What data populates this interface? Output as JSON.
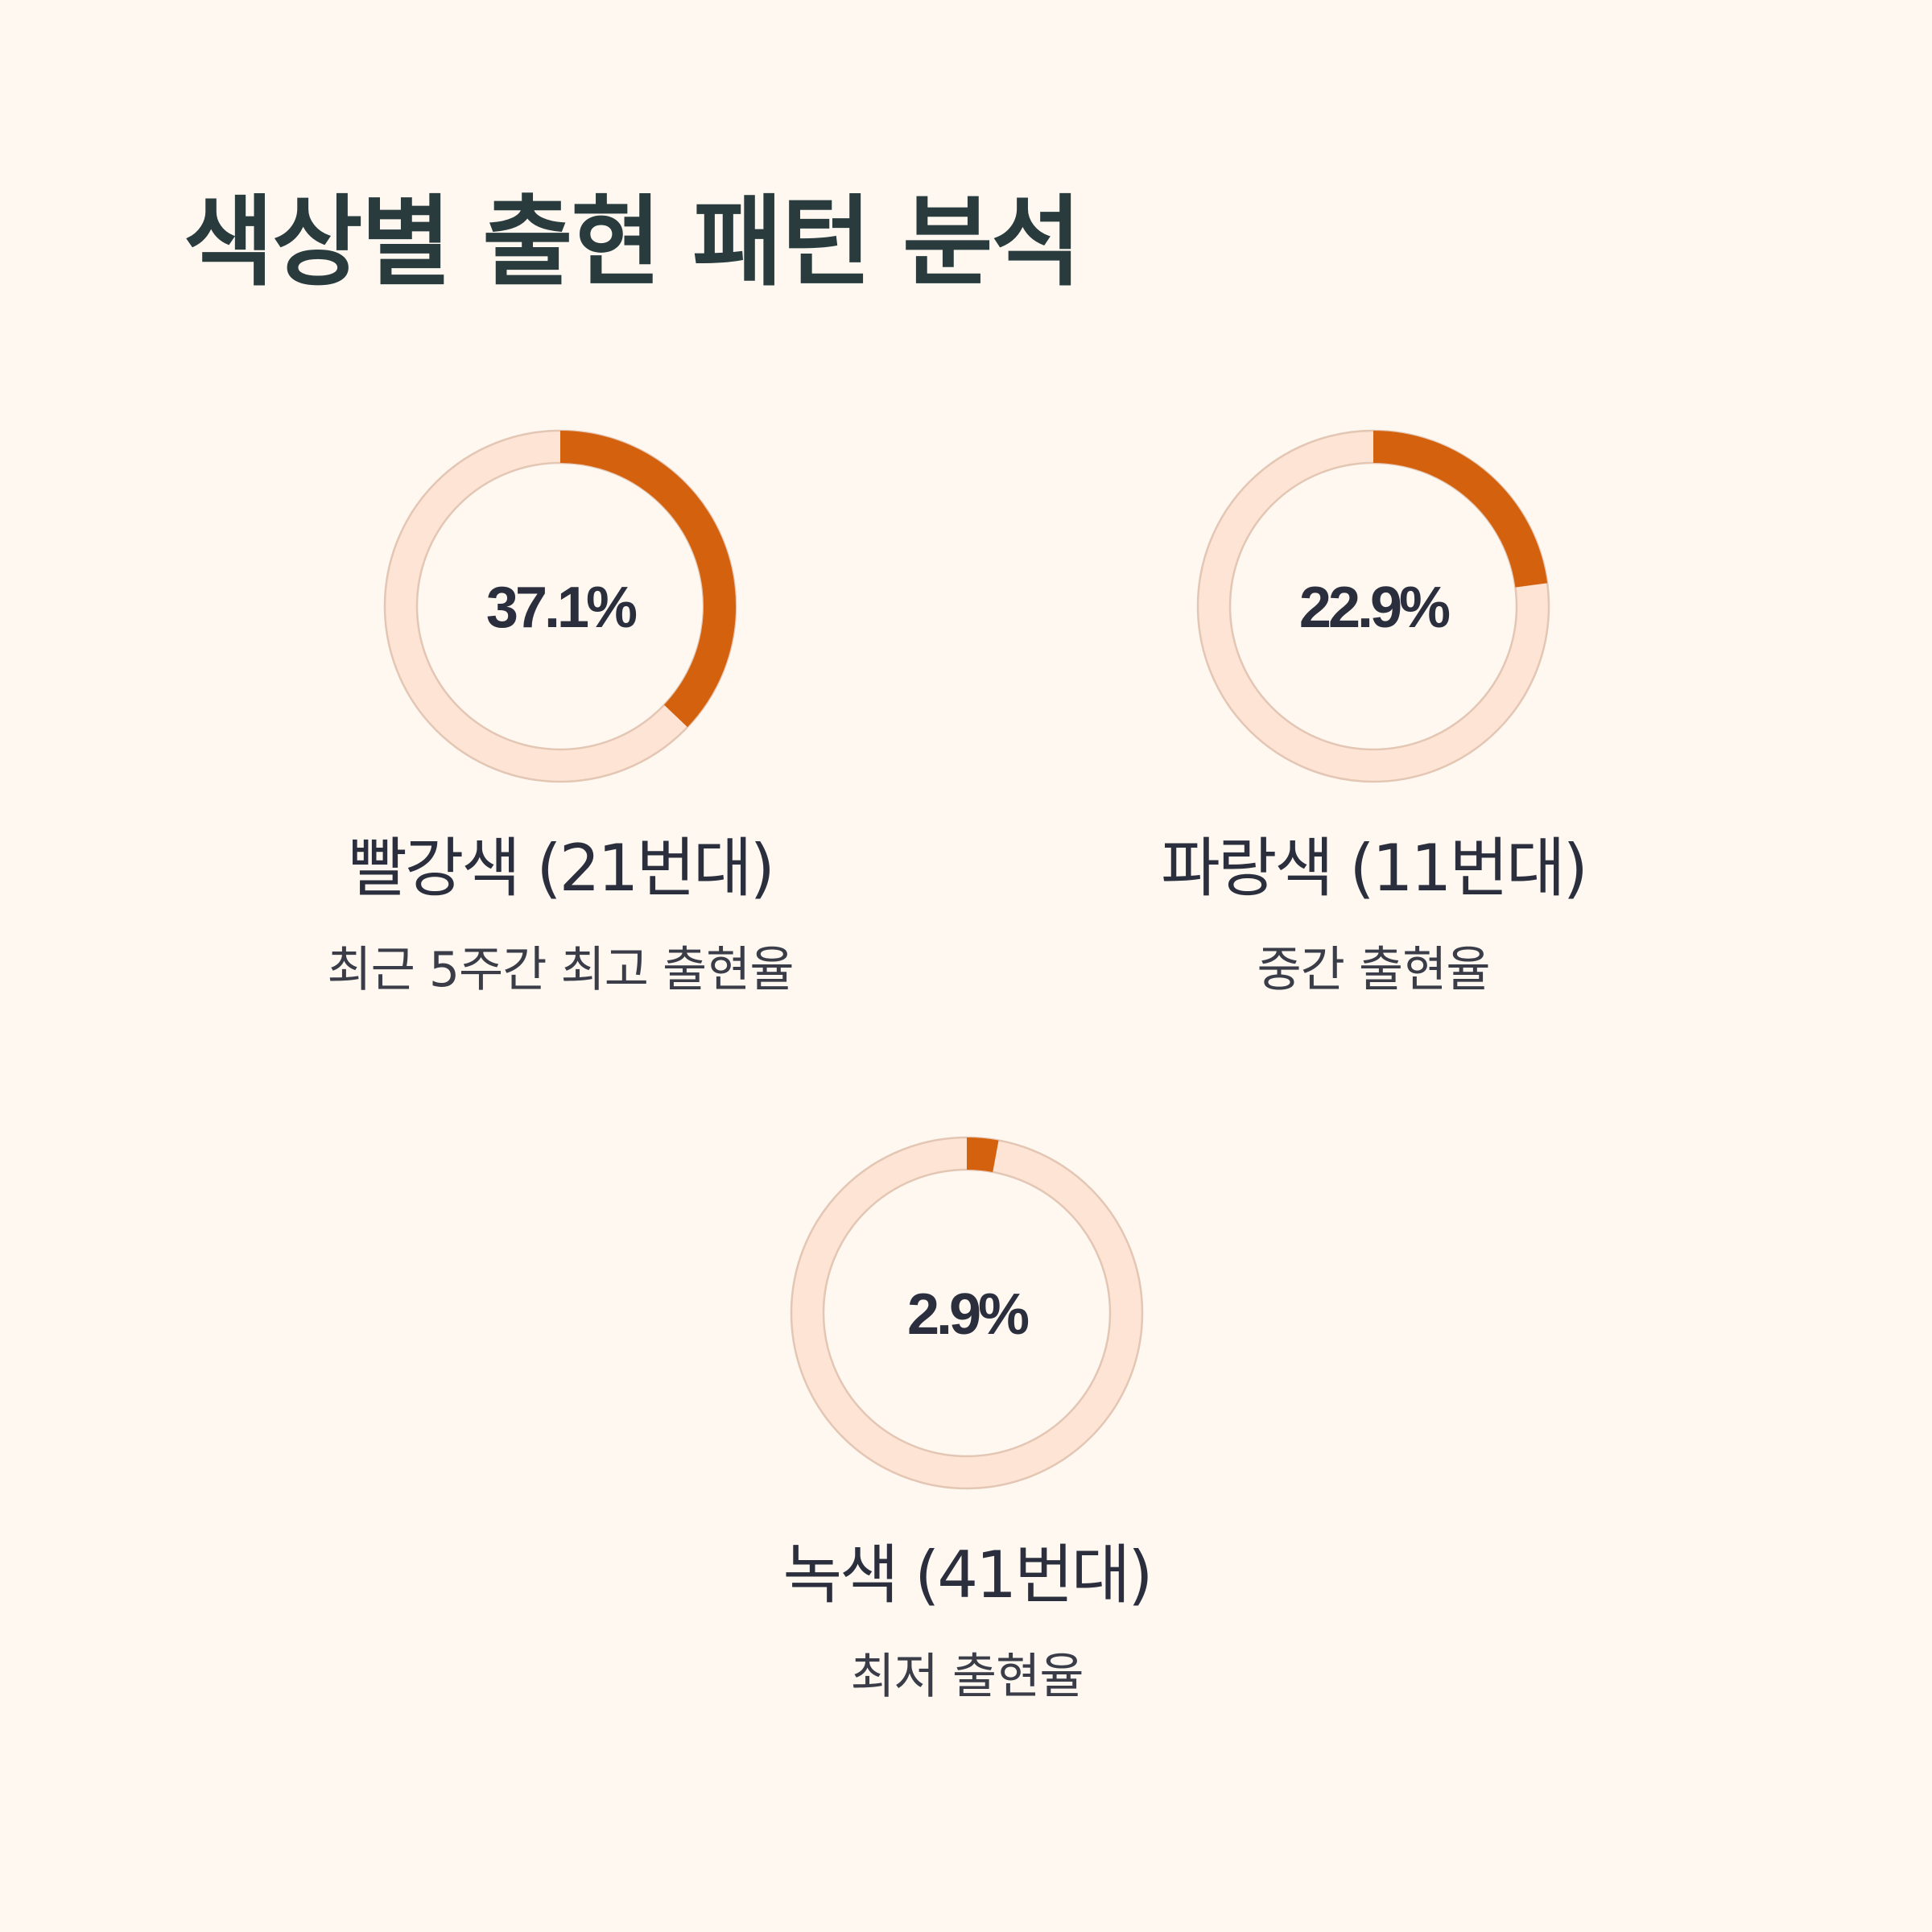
{
  "title": "색상별 출현 패턴 분석",
  "colors": {
    "background": "#fef8f1",
    "track": "#fde4d4",
    "track_outline": "#e3c6b3",
    "progress": "#d4610e",
    "title_text": "#2a3b3d",
    "body_text": "#2b2f3d"
  },
  "chart_data": [
    {
      "type": "pie",
      "variant": "donut-gauge",
      "value_percent": 37.1,
      "value_label": "37.1%",
      "title": "빨강색 (21번대)",
      "subtitle": "최근 5주간 최고 출현율"
    },
    {
      "type": "pie",
      "variant": "donut-gauge",
      "value_percent": 22.9,
      "value_label": "22.9%",
      "title": "파랑색 (11번대)",
      "subtitle": "중간 출현율"
    },
    {
      "type": "pie",
      "variant": "donut-gauge",
      "value_percent": 2.9,
      "value_label": "2.9%",
      "title": "녹색 (41번대)",
      "subtitle": "최저 출현율"
    }
  ]
}
